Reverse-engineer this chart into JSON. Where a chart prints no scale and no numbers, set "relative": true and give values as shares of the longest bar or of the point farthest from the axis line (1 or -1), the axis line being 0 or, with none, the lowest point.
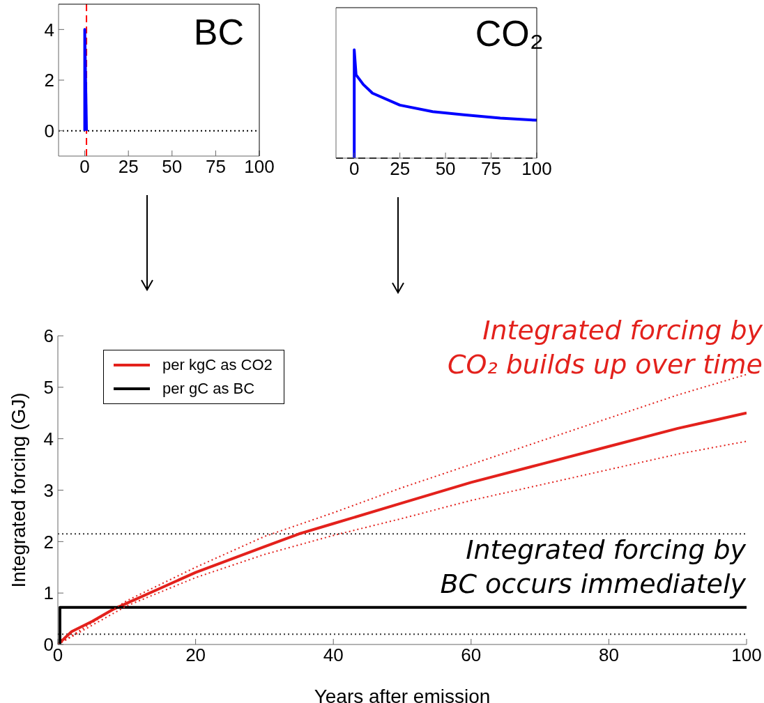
{
  "chart_data": [
    {
      "type": "line",
      "title": "BC",
      "xlim": [
        -15,
        100
      ],
      "xticks": [
        0,
        25,
        50,
        75,
        100
      ],
      "ylim": [
        -1,
        5
      ],
      "yticks": [
        0,
        2,
        4
      ],
      "marker": "none",
      "grid": false,
      "series": [
        {
          "color": "#0000ff",
          "x": [
            0,
            0,
            1
          ],
          "values": [
            0,
            4,
            0
          ],
          "line_style": "solid"
        }
      ],
      "ref_lines": [
        {
          "axis": "y",
          "value": 0,
          "color": "#000000",
          "line_style": "dotted"
        },
        {
          "axis": "x",
          "value": 1,
          "color": "#ff0000",
          "line_style": "dashed"
        }
      ]
    },
    {
      "type": "line",
      "title": "CO₂",
      "relative": true,
      "tick_labels": "x",
      "xlim": [
        -10,
        100
      ],
      "xticks": [
        0,
        25,
        50,
        75,
        100
      ],
      "marker": "none",
      "grid": false,
      "series": [
        {
          "color": "#0000ff",
          "x": [
            0,
            0,
            0,
            1,
            5,
            10,
            25,
            43,
            60,
            80,
            100
          ],
          "values": [
            0,
            0.49,
            1,
            0.77,
            0.68,
            0.6,
            0.49,
            0.43,
            0.4,
            0.37,
            0.35
          ],
          "line_style": "solid"
        }
      ],
      "ref_lines": [
        {
          "axis": "y",
          "value": 0,
          "color": "#000000",
          "line_style": "dashed"
        }
      ]
    },
    {
      "type": "line",
      "xlabel": "Years after emission",
      "ylabel": "Integrated forcing (GJ)",
      "xlim": [
        0,
        100
      ],
      "xticks": [
        0,
        20,
        40,
        60,
        80,
        100
      ],
      "ylim": [
        0,
        6
      ],
      "yticks": [
        0,
        1,
        2,
        3,
        4,
        5,
        6
      ],
      "marker": "none",
      "grid": false,
      "legend": "top left",
      "annotations": [
        "Integrated forcing by\nCO₂ builds up over time",
        "Integrated forcing by\nBC occurs immediately"
      ],
      "series": [
        {
          "name": "per kgC as CO2",
          "color": "#e3211c",
          "line_style": "solid",
          "x": [
            0,
            2,
            5,
            8,
            10,
            15,
            20,
            25,
            30,
            35,
            40,
            50,
            60,
            70,
            80,
            90,
            100
          ],
          "values": [
            0,
            0.25,
            0.45,
            0.68,
            0.8,
            1.1,
            1.4,
            1.65,
            1.9,
            2.15,
            2.35,
            2.75,
            3.15,
            3.5,
            3.85,
            4.2,
            4.5
          ]
        },
        {
          "name": "per gC as BC",
          "type": "step",
          "color": "#000000",
          "line_style": "solid",
          "x": [
            0,
            0.3,
            10,
            20,
            30,
            40,
            50,
            60,
            70,
            80,
            90,
            100
          ],
          "values": [
            0,
            0.72,
            0.72,
            0.72,
            0.72,
            0.72,
            0.72,
            0.72,
            0.72,
            0.72,
            0.72,
            0.72
          ]
        },
        {
          "color": "#e3211c",
          "line_style": "dotted",
          "x": [
            0,
            10,
            20,
            30,
            40,
            50,
            60,
            70,
            80,
            90,
            100
          ],
          "values": [
            0,
            0.85,
            1.5,
            2.1,
            2.56,
            3.05,
            3.5,
            3.95,
            4.4,
            4.85,
            5.25
          ]
        },
        {
          "color": "#e3211c",
          "line_style": "dotted",
          "x": [
            0,
            10,
            20,
            30,
            40,
            50,
            60,
            70,
            80,
            90,
            100
          ],
          "values": [
            0,
            0.75,
            1.3,
            1.75,
            2.12,
            2.45,
            2.8,
            3.1,
            3.4,
            3.7,
            3.95
          ]
        }
      ],
      "ref_lines": [
        {
          "axis": "y",
          "value": 2.15,
          "color": "#333333",
          "line_style": "dotted"
        },
        {
          "axis": "y",
          "value": 0.2,
          "color": "#333333",
          "line_style": "dotted"
        }
      ]
    }
  ]
}
